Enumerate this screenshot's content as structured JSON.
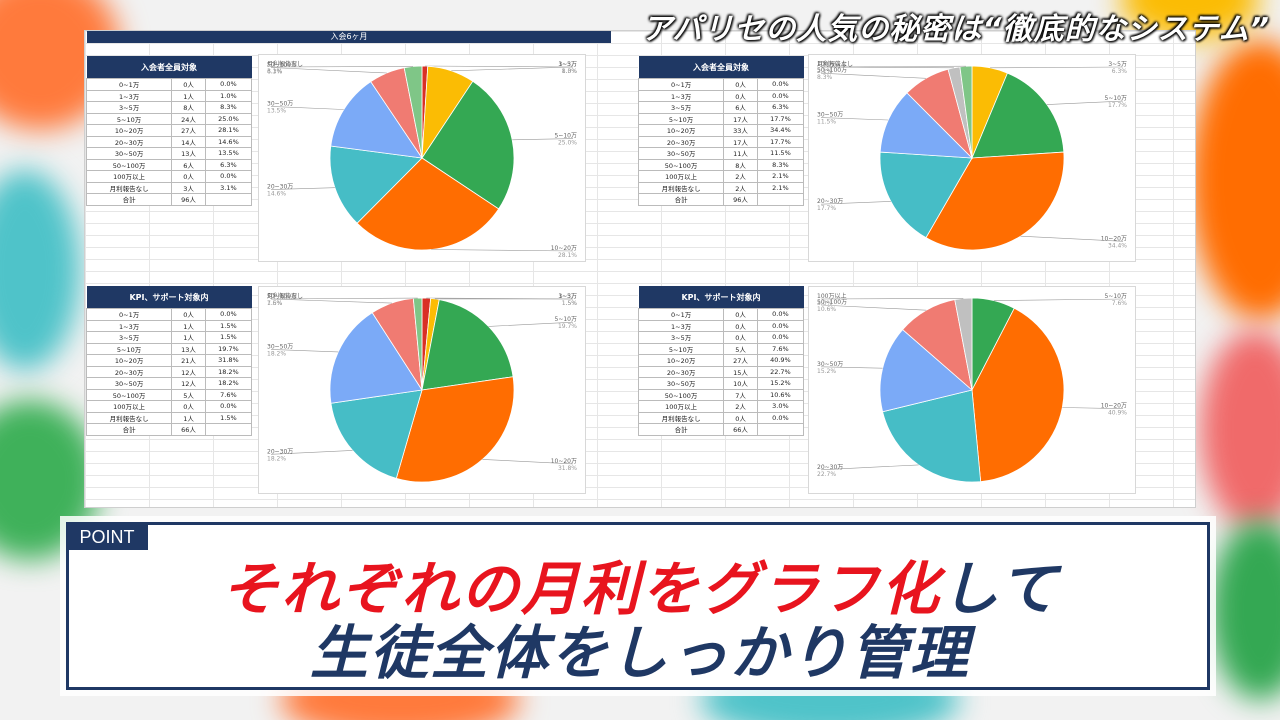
{
  "headline": "アパリセの人気の秘密は“徹底的なシステム”",
  "sheet_title": "入会6ヶ月",
  "point_label": "POINT",
  "caption": {
    "line1_red": "それぞれの月利をグラフ化",
    "line1_navy": "して",
    "line2": "生徒全体をしっかり管理"
  },
  "colors": {
    "navy": "#1f3864",
    "red_text": "#e8141e",
    "slices": [
      "#d93025",
      "#fbbc04",
      "#34a853",
      "#ff6d01",
      "#46bdc6",
      "#7baaf7",
      "#f07b72",
      "#7fc687",
      "#c0c0c0"
    ]
  },
  "chart_data": [
    {
      "type": "pie",
      "title": "入会者全員対象",
      "rows": [
        [
          "0~1万",
          "0人",
          "0.0%"
        ],
        [
          "1~3万",
          "1人",
          "1.0%"
        ],
        [
          "3~5万",
          "8人",
          "8.3%"
        ],
        [
          "5~10万",
          "24人",
          "25.0%"
        ],
        [
          "10~20万",
          "27人",
          "28.1%"
        ],
        [
          "20~30万",
          "14人",
          "14.6%"
        ],
        [
          "30~50万",
          "13人",
          "13.5%"
        ],
        [
          "50~100万",
          "6人",
          "6.3%"
        ],
        [
          "100万以上",
          "0人",
          "0.0%"
        ],
        [
          "月利報告なし",
          "3人",
          "3.1%"
        ],
        [
          "合計",
          "96人",
          ""
        ]
      ],
      "slices": [
        {
          "label": "1~3万",
          "value": 1.0,
          "color": "#d93025"
        },
        {
          "label": "3~5万",
          "value": 8.3,
          "color": "#fbbc04"
        },
        {
          "label": "5~10万",
          "value": 25.0,
          "color": "#34a853"
        },
        {
          "label": "10~20万",
          "value": 28.1,
          "color": "#ff6d01"
        },
        {
          "label": "20~30万",
          "value": 14.6,
          "color": "#46bdc6"
        },
        {
          "label": "30~50万",
          "value": 13.5,
          "color": "#7baaf7"
        },
        {
          "label": "50~100万",
          "value": 6.3,
          "color": "#f07b72"
        },
        {
          "label": "月利報告なし",
          "value": 3.1,
          "color": "#7fc687"
        }
      ]
    },
    {
      "type": "pie",
      "title": "入会者全員対象",
      "rows": [
        [
          "0~1万",
          "0人",
          "0.0%"
        ],
        [
          "1~3万",
          "0人",
          "0.0%"
        ],
        [
          "3~5万",
          "6人",
          "6.3%"
        ],
        [
          "5~10万",
          "17人",
          "17.7%"
        ],
        [
          "10~20万",
          "33人",
          "34.4%"
        ],
        [
          "20~30万",
          "17人",
          "17.7%"
        ],
        [
          "30~50万",
          "11人",
          "11.5%"
        ],
        [
          "50~100万",
          "8人",
          "8.3%"
        ],
        [
          "100万以上",
          "2人",
          "2.1%"
        ],
        [
          "月利報告なし",
          "2人",
          "2.1%"
        ],
        [
          "合計",
          "96人",
          ""
        ]
      ],
      "slices": [
        {
          "label": "3~5万",
          "value": 6.3,
          "color": "#fbbc04"
        },
        {
          "label": "5~10万",
          "value": 17.7,
          "color": "#34a853"
        },
        {
          "label": "10~20万",
          "value": 34.4,
          "color": "#ff6d01"
        },
        {
          "label": "20~30万",
          "value": 17.7,
          "color": "#46bdc6"
        },
        {
          "label": "30~50万",
          "value": 11.5,
          "color": "#7baaf7"
        },
        {
          "label": "50~100万",
          "value": 8.3,
          "color": "#f07b72"
        },
        {
          "label": "100万以上",
          "value": 2.1,
          "color": "#c0c0c0"
        },
        {
          "label": "月利報告なし",
          "value": 2.1,
          "color": "#7fc687"
        }
      ]
    },
    {
      "type": "pie",
      "title": "KPI、サポート対象内",
      "rows": [
        [
          "0~1万",
          "0人",
          "0.0%"
        ],
        [
          "1~3万",
          "1人",
          "1.5%"
        ],
        [
          "3~5万",
          "1人",
          "1.5%"
        ],
        [
          "5~10万",
          "13人",
          "19.7%"
        ],
        [
          "10~20万",
          "21人",
          "31.8%"
        ],
        [
          "20~30万",
          "12人",
          "18.2%"
        ],
        [
          "30~50万",
          "12人",
          "18.2%"
        ],
        [
          "50~100万",
          "5人",
          "7.6%"
        ],
        [
          "100万以上",
          "0人",
          "0.0%"
        ],
        [
          "月利報告なし",
          "1人",
          "1.5%"
        ],
        [
          "合計",
          "66人",
          ""
        ]
      ],
      "slices": [
        {
          "label": "1~3万",
          "value": 1.5,
          "color": "#d93025"
        },
        {
          "label": "3~5万",
          "value": 1.5,
          "color": "#fbbc04"
        },
        {
          "label": "5~10万",
          "value": 19.7,
          "color": "#34a853"
        },
        {
          "label": "10~20万",
          "value": 31.8,
          "color": "#ff6d01"
        },
        {
          "label": "20~30万",
          "value": 18.2,
          "color": "#46bdc6"
        },
        {
          "label": "30~50万",
          "value": 18.2,
          "color": "#7baaf7"
        },
        {
          "label": "50~100万",
          "value": 7.6,
          "color": "#f07b72"
        },
        {
          "label": "月利報告なし",
          "value": 1.5,
          "color": "#7fc687"
        }
      ]
    },
    {
      "type": "pie",
      "title": "KPI、サポート対象内",
      "rows": [
        [
          "0~1万",
          "0人",
          "0.0%"
        ],
        [
          "1~3万",
          "0人",
          "0.0%"
        ],
        [
          "3~5万",
          "0人",
          "0.0%"
        ],
        [
          "5~10万",
          "5人",
          "7.6%"
        ],
        [
          "10~20万",
          "27人",
          "40.9%"
        ],
        [
          "20~30万",
          "15人",
          "22.7%"
        ],
        [
          "30~50万",
          "10人",
          "15.2%"
        ],
        [
          "50~100万",
          "7人",
          "10.6%"
        ],
        [
          "100万以上",
          "2人",
          "3.0%"
        ],
        [
          "月利報告なし",
          "0人",
          "0.0%"
        ],
        [
          "合計",
          "66人",
          ""
        ]
      ],
      "slices": [
        {
          "label": "5~10万",
          "value": 7.6,
          "color": "#34a853"
        },
        {
          "label": "10~20万",
          "value": 40.9,
          "color": "#ff6d01"
        },
        {
          "label": "20~30万",
          "value": 22.7,
          "color": "#46bdc6"
        },
        {
          "label": "30~50万",
          "value": 15.2,
          "color": "#7baaf7"
        },
        {
          "label": "50~100万",
          "value": 10.6,
          "color": "#f07b72"
        },
        {
          "label": "100万以上",
          "value": 3.0,
          "color": "#c0c0c0"
        }
      ]
    }
  ]
}
